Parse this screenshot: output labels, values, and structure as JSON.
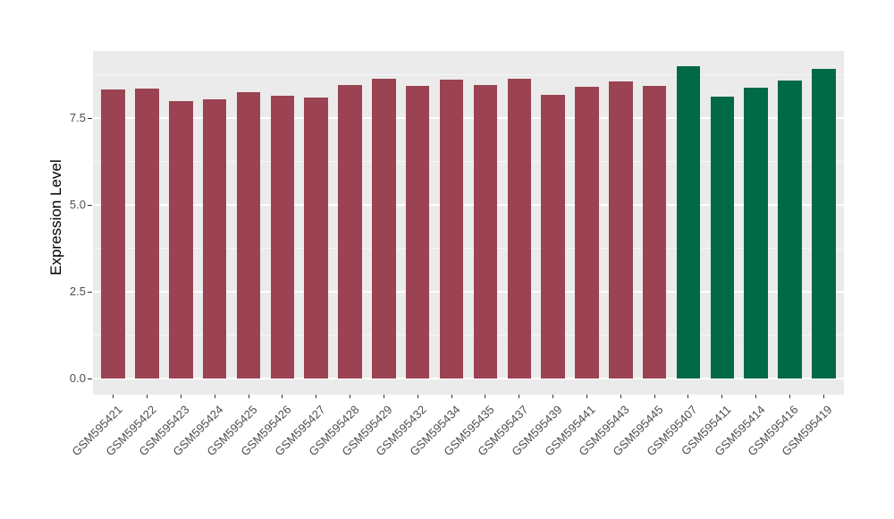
{
  "chart_data": {
    "type": "bar",
    "title": "",
    "xlabel": "",
    "ylabel": "Expression Level",
    "categories": [
      "GSM595421",
      "GSM595422",
      "GSM595423",
      "GSM595424",
      "GSM595425",
      "GSM595426",
      "GSM595427",
      "GSM595428",
      "GSM595429",
      "GSM595432",
      "GSM595434",
      "GSM595435",
      "GSM595437",
      "GSM595439",
      "GSM595441",
      "GSM595443",
      "GSM595445",
      "GSM595407",
      "GSM595411",
      "GSM595414",
      "GSM595416",
      "GSM595419"
    ],
    "values": [
      8.33,
      8.34,
      8.0,
      8.05,
      8.26,
      8.15,
      8.1,
      8.46,
      8.63,
      8.44,
      8.6,
      8.45,
      8.63,
      8.17,
      8.41,
      8.56,
      8.44,
      9.0,
      8.11,
      8.38,
      8.58,
      8.93
    ],
    "bar_group": [
      0,
      0,
      0,
      0,
      0,
      0,
      0,
      0,
      0,
      0,
      0,
      0,
      0,
      0,
      0,
      0,
      0,
      1,
      1,
      1,
      1,
      1
    ],
    "groups": [
      {
        "name": "group-maroon",
        "color": "#9B4352"
      },
      {
        "name": "group-green",
        "color": "#006946"
      }
    ],
    "ylim": [
      0,
      9.43
    ],
    "yticks": [
      0.0,
      2.5,
      5.0,
      7.5
    ],
    "ytick_labels": [
      "0.0",
      "2.5",
      "5.0",
      "7.5"
    ],
    "yticks_minor": [
      1.25,
      3.75,
      6.25,
      8.75
    ],
    "bar_width_fraction": 0.7,
    "legend": "none",
    "grid": true,
    "panel_bg": "#EBEBEB",
    "grid_major_color": "#FFFFFF",
    "grid_minor_color": "#F7F7F7",
    "axis_text_color": "#4D4D4D",
    "axis_title_color": "#000000"
  }
}
